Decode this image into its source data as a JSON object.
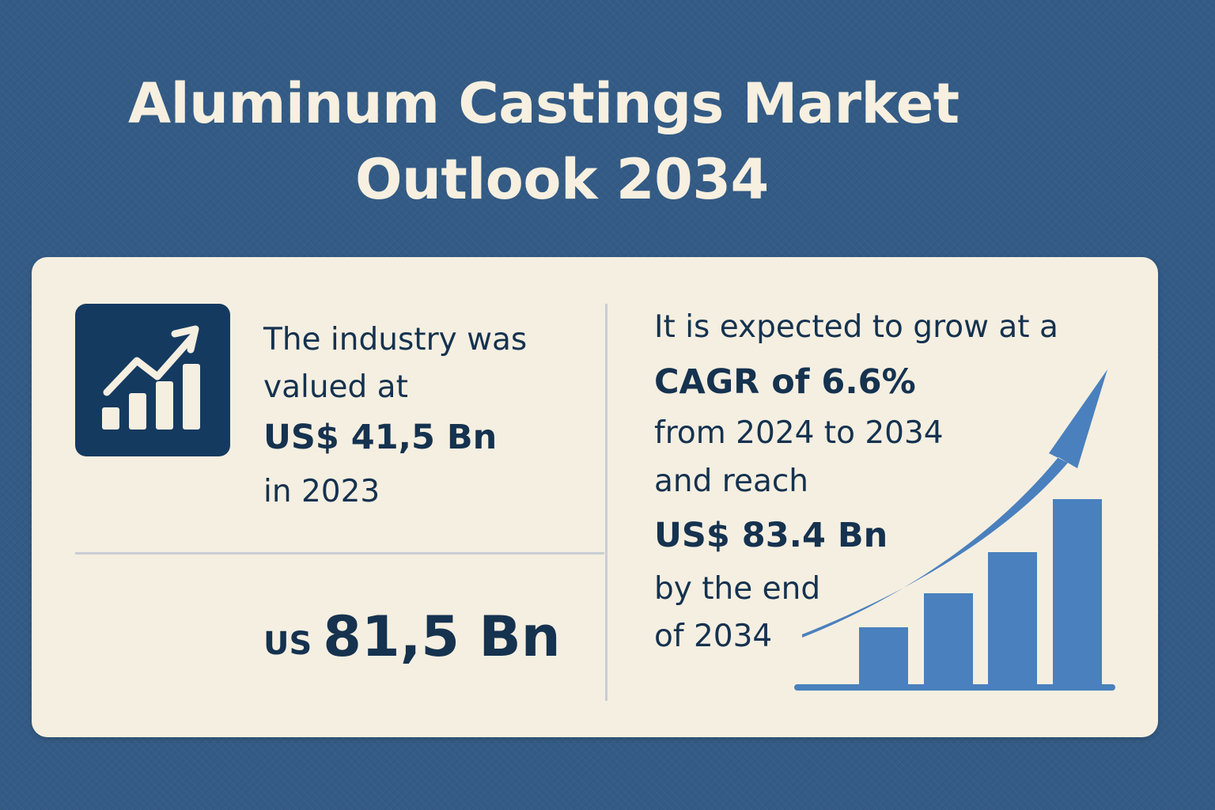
{
  "header": {
    "title_line1": "Aluminum Castings Market",
    "title_line2": "Outlook 2034"
  },
  "left_panel": {
    "icon": "growth-chart-icon",
    "line1": "The industry was",
    "line2": "valued at",
    "value": "US$ 41,5 Bn",
    "year": "in 2023"
  },
  "bottom_left": {
    "prefix": "US",
    "value": "81,5 Bn"
  },
  "right_panel": {
    "line1": "It is expected to grow at a",
    "cagr": "CAGR of 6.6%",
    "period": "from 2024 to 2034",
    "line4": "and reach",
    "value": "US$ 83.4 Bn",
    "line6": "by the end",
    "line7": "of 2034",
    "illustration": "rising-bar-chart-with-arrow"
  },
  "colors": {
    "background": "#335b85",
    "card": "#f5efe1",
    "title": "#f7f0e0",
    "text": "#15324f",
    "accent": "#4a80bd",
    "icon_tile": "#153a60"
  }
}
